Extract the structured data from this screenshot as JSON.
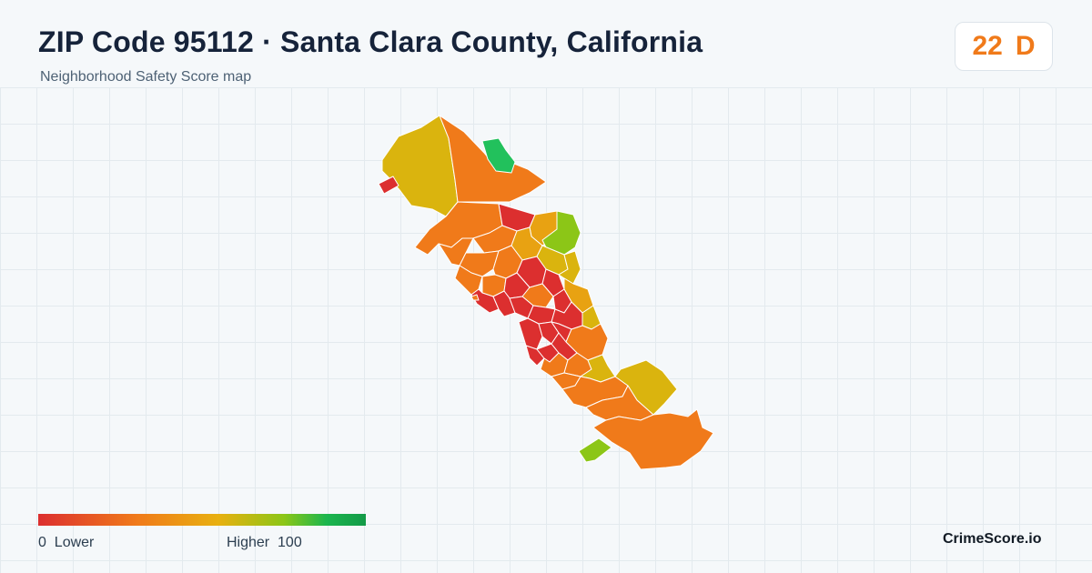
{
  "header": {
    "title": "ZIP Code 95112 · Santa Clara County, California",
    "subtitle": "Neighborhood Safety Score map"
  },
  "score": {
    "value": "22",
    "grade": "D",
    "color": "#f07a1a"
  },
  "legend": {
    "min_label": "0",
    "low_label": "Lower",
    "high_label": "Higher",
    "max_label": "100"
  },
  "brand": "CrimeScore.io",
  "colors": {
    "red": "#dc2f2f",
    "orange": "#f07a1a",
    "amber": "#e8a212",
    "yellow": "#dab40e",
    "lime": "#8cc617",
    "green": "#22c15c"
  }
}
